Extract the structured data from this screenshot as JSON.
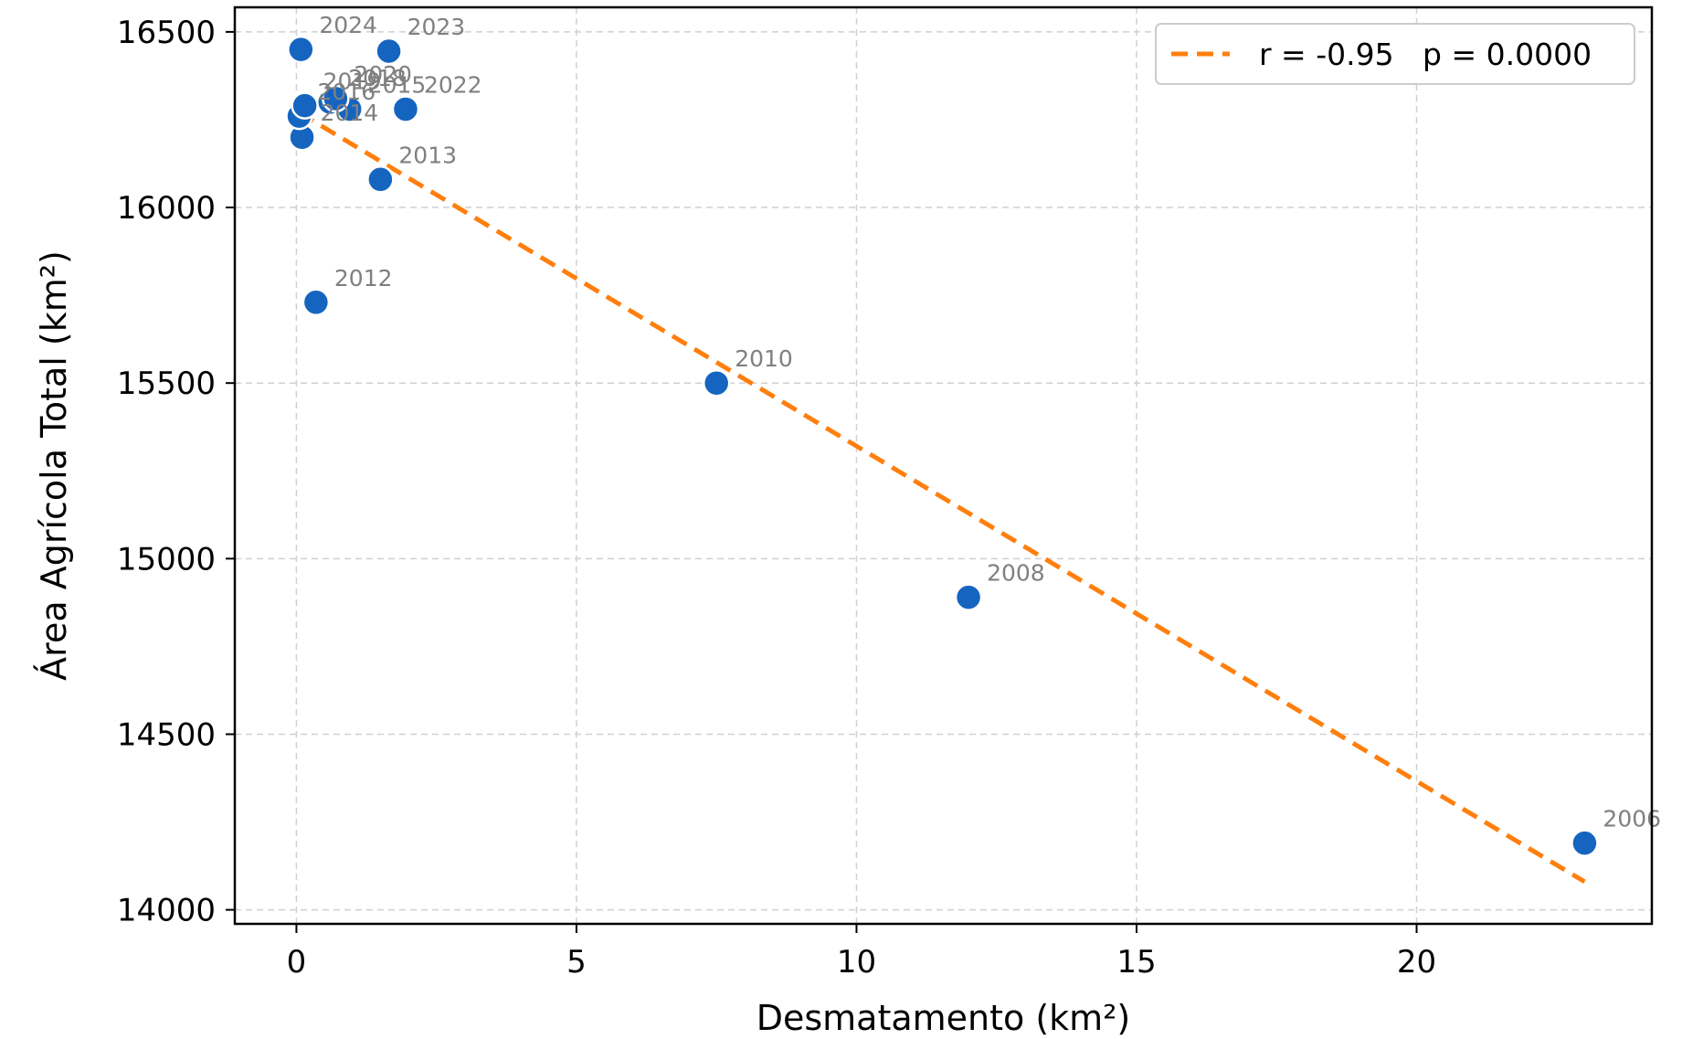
{
  "chart_data": {
    "type": "scatter",
    "xlabel": "Desmatamento (km²)",
    "ylabel": "Área Agrícola Total (km²)",
    "xlim": [
      -1.1,
      24.2
    ],
    "ylim": [
      13960,
      16570
    ],
    "xticks": [
      0,
      5,
      10,
      15,
      20
    ],
    "yticks": [
      14000,
      14500,
      15000,
      15500,
      16000,
      16500
    ],
    "grid": true,
    "legend_position": "top-right",
    "colors": {
      "points": "#1565C0",
      "trend": "#FF7F0E",
      "label": "#808080",
      "grid": "#d0d0d0"
    },
    "points": [
      {
        "year": "2006",
        "x": 23.0,
        "y": 14190
      },
      {
        "year": "2008",
        "x": 12.0,
        "y": 14890
      },
      {
        "year": "2010",
        "x": 7.5,
        "y": 15500
      },
      {
        "year": "2012",
        "x": 0.35,
        "y": 15730
      },
      {
        "year": "2013",
        "x": 1.5,
        "y": 16080
      },
      {
        "year": "2014",
        "x": 0.1,
        "y": 16200
      },
      {
        "year": "2015",
        "x": 0.95,
        "y": 16280
      },
      {
        "year": "2016",
        "x": 0.05,
        "y": 16260
      },
      {
        "year": "2018",
        "x": 0.6,
        "y": 16300
      },
      {
        "year": "2019",
        "x": 0.15,
        "y": 16290
      },
      {
        "year": "2020",
        "x": 0.7,
        "y": 16310
      },
      {
        "year": "2022",
        "x": 1.95,
        "y": 16280
      },
      {
        "year": "2023",
        "x": 1.65,
        "y": 16445
      },
      {
        "year": "2024",
        "x": 0.08,
        "y": 16450
      }
    ],
    "trend_line": {
      "x": [
        0.05,
        23.0
      ],
      "y": [
        16270,
        14080
      ]
    },
    "legend": {
      "label": "r = -0.95   p = 0.0000"
    }
  }
}
